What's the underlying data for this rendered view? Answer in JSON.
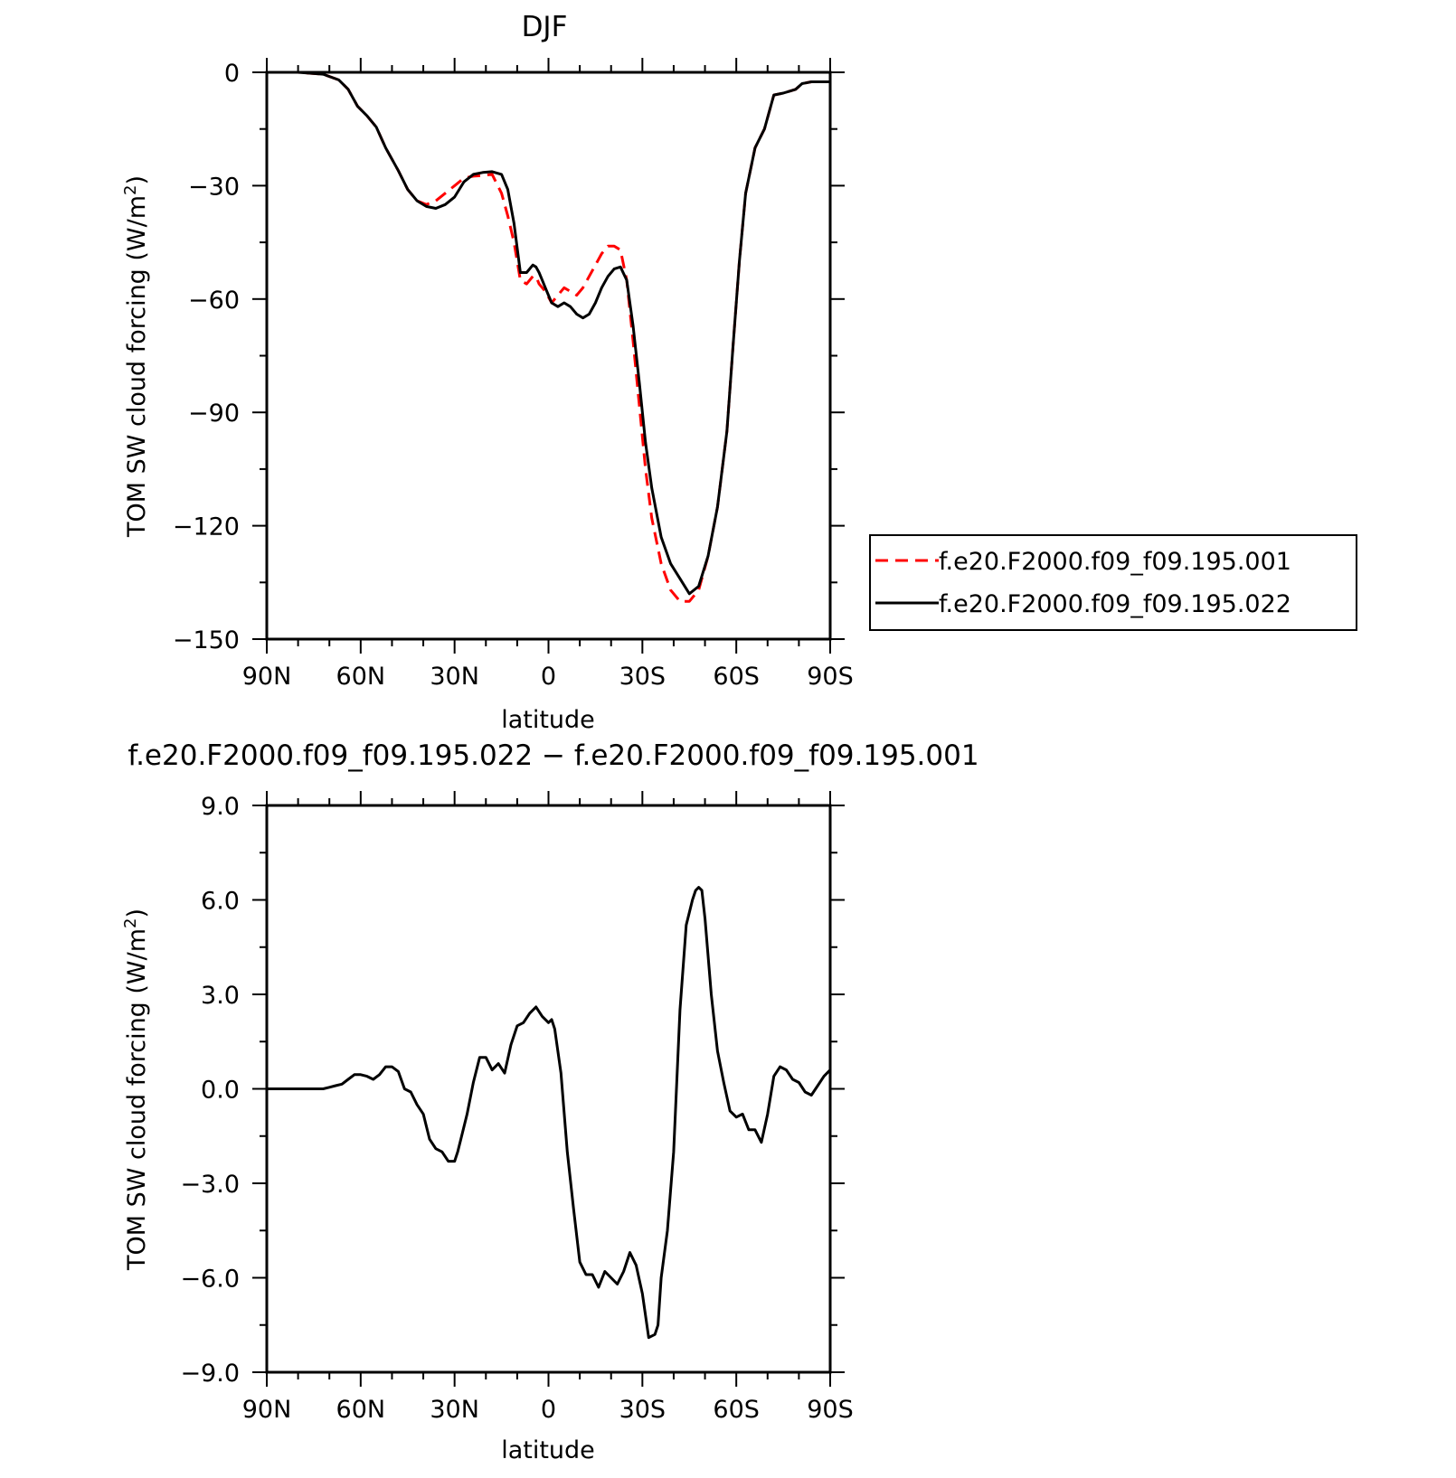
{
  "chart_data": [
    {
      "type": "line",
      "title": "DJF",
      "xlabel": "latitude",
      "ylabel": "TOM SW cloud forcing (W/m",
      "ylabel_sup": "2",
      "ylabel_close": ")",
      "xlim": [
        90,
        -90
      ],
      "ylim": [
        -150,
        0
      ],
      "x_ticks": [
        90,
        60,
        30,
        0,
        -30,
        -60,
        -90
      ],
      "x_tick_labels": [
        "90N",
        "60N",
        "30N",
        "0",
        "30S",
        "60S",
        "90S"
      ],
      "y_ticks": [
        0,
        -30,
        -60,
        -90,
        -120,
        -150
      ],
      "y_tick_labels": [
        "0",
        "−30",
        "−60",
        "−90",
        "−120",
        "−150"
      ],
      "legend_placement": "right",
      "series": [
        {
          "name": "f.e20.F2000.f09_f09.195.001",
          "color": "#ff0000",
          "style": "dashed",
          "x": [
            90,
            80,
            72,
            67,
            64,
            61,
            58,
            55,
            52,
            48,
            45,
            42,
            39,
            36,
            33,
            30,
            27,
            24,
            21,
            18,
            15,
            13,
            11,
            9,
            7,
            5,
            4,
            3,
            2,
            1,
            -1,
            -3,
            -5,
            -7,
            -9,
            -11,
            -13,
            -15,
            -17,
            -19,
            -21,
            -23,
            -25,
            -27,
            -29,
            -31,
            -33,
            -36,
            -39,
            -42,
            -45,
            -48,
            -51,
            -54,
            -57,
            -59,
            -61,
            -63,
            -66,
            -69,
            -72,
            -75,
            -77,
            -79,
            -81,
            -84,
            -87,
            -90
          ],
          "y": [
            0,
            0,
            -0.5,
            -2,
            -4.5,
            -9,
            -11.5,
            -14.5,
            -20,
            -26,
            -31,
            -34,
            -35,
            -34,
            -32,
            -30,
            -28,
            -27.5,
            -27.3,
            -27,
            -32,
            -38,
            -45,
            -55,
            -56,
            -54,
            -54,
            -56,
            -57,
            -58,
            -61,
            -59,
            -57,
            -58,
            -59,
            -57,
            -54,
            -51,
            -48,
            -46,
            -46,
            -47,
            -55,
            -71,
            -88,
            -105,
            -118,
            -130,
            -137,
            -140,
            -140,
            -137,
            -128,
            -115,
            -95,
            -72,
            -50,
            -32,
            -20,
            -15,
            -6,
            -5.5,
            -5,
            -4.5,
            -3,
            -2.5,
            -2.5,
            -2.5
          ]
        },
        {
          "name": "f.e20.F2000.f09_f09.195.022",
          "color": "#000000",
          "style": "solid",
          "x": [
            90,
            80,
            72,
            67,
            64,
            61,
            58,
            55,
            52,
            48,
            45,
            42,
            39,
            36,
            33,
            30,
            27,
            24,
            21,
            18,
            15,
            13,
            11,
            9,
            7,
            5,
            4,
            3,
            2,
            1,
            -1,
            -3,
            -5,
            -7,
            -9,
            -11,
            -13,
            -15,
            -17,
            -19,
            -21,
            -23,
            -25,
            -27,
            -29,
            -31,
            -33,
            -36,
            -39,
            -42,
            -45,
            -48,
            -51,
            -54,
            -57,
            -59,
            -61,
            -63,
            -66,
            -69,
            -72,
            -75,
            -77,
            -79,
            -81,
            -84,
            -87,
            -90
          ],
          "y": [
            0,
            0,
            -0.5,
            -2,
            -4.5,
            -9,
            -11.5,
            -14.5,
            -20,
            -26,
            -31,
            -34,
            -35.5,
            -36,
            -35,
            -33,
            -29,
            -27,
            -26.5,
            -26.3,
            -27,
            -31,
            -40,
            -53,
            -53,
            -51,
            -51.5,
            -53,
            -55,
            -57,
            -61,
            -62,
            -61,
            -62,
            -64,
            -65,
            -64,
            -61,
            -57,
            -54,
            -52,
            -51.5,
            -55,
            -67,
            -82,
            -98,
            -110,
            -123,
            -130,
            -134,
            -138,
            -136,
            -128,
            -115,
            -95,
            -72,
            -50,
            -32,
            -20,
            -15,
            -6,
            -5.5,
            -5,
            -4.5,
            -3,
            -2.5,
            -2.5,
            -2.5
          ]
        }
      ]
    },
    {
      "type": "line",
      "title": "f.e20.F2000.f09_f09.195.022 − f.e20.F2000.f09_f09.195.001",
      "xlabel": "latitude",
      "ylabel": "TOM SW cloud forcing (W/m",
      "ylabel_sup": "2",
      "ylabel_close": ")",
      "xlim": [
        90,
        -90
      ],
      "ylim": [
        -9,
        9
      ],
      "x_ticks": [
        90,
        60,
        30,
        0,
        -30,
        -60,
        -90
      ],
      "x_tick_labels": [
        "90N",
        "60N",
        "30N",
        "0",
        "30S",
        "60S",
        "90S"
      ],
      "y_ticks": [
        9,
        6,
        3,
        0,
        -3,
        -6,
        -9
      ],
      "y_tick_labels": [
        "9.0",
        "6.0",
        "3.0",
        "0.0",
        "−3.0",
        "−6.0",
        "−9.0"
      ],
      "series": [
        {
          "color": "#000000",
          "style": "solid",
          "x": [
            90,
            80,
            72,
            70,
            68,
            66,
            64,
            62,
            60,
            58,
            56,
            54,
            52,
            50,
            48,
            46,
            44,
            42,
            40,
            38,
            36,
            34,
            32,
            30,
            29,
            28,
            26,
            24,
            22,
            20,
            18,
            16,
            14,
            12,
            10,
            8,
            6,
            4,
            2,
            0,
            -1,
            -2,
            -4,
            -6,
            -8,
            -10,
            -12,
            -14,
            -16,
            -18,
            -20,
            -22,
            -24,
            -26,
            -28,
            -30,
            -32,
            -34,
            -35,
            -36,
            -38,
            -40,
            -42,
            -44,
            -46,
            -47,
            -48,
            -49,
            -50,
            -52,
            -54,
            -56,
            -58,
            -60,
            -62,
            -64,
            -66,
            -68,
            -70,
            -72,
            -74,
            -76,
            -78,
            -80,
            -82,
            -84,
            -86,
            -88,
            -90
          ],
          "y": [
            0,
            0,
            0,
            0.05,
            0.1,
            0.15,
            0.3,
            0.45,
            0.45,
            0.4,
            0.3,
            0.45,
            0.7,
            0.7,
            0.55,
            0,
            -0.1,
            -0.5,
            -0.8,
            -1.6,
            -1.9,
            -2.0,
            -2.3,
            -2.3,
            -2.0,
            -1.6,
            -0.8,
            0.2,
            1.0,
            1.0,
            0.6,
            0.8,
            0.5,
            1.4,
            2.0,
            2.1,
            2.4,
            2.6,
            2.3,
            2.1,
            2.2,
            1.9,
            0.5,
            -2.0,
            -3.8,
            -5.5,
            -5.9,
            -5.9,
            -6.3,
            -5.8,
            -6.0,
            -6.2,
            -5.8,
            -5.2,
            -5.6,
            -6.5,
            -7.9,
            -7.8,
            -7.5,
            -6.0,
            -4.5,
            -2.0,
            2.5,
            5.2,
            6.0,
            6.3,
            6.4,
            6.3,
            5.4,
            3.0,
            1.2,
            0.2,
            -0.7,
            -0.9,
            -0.8,
            -1.3,
            -1.3,
            -1.7,
            -0.8,
            0.4,
            0.7,
            0.6,
            0.3,
            0.2,
            -0.1,
            -0.2,
            0.1,
            0.4,
            0.6
          ]
        }
      ]
    }
  ]
}
